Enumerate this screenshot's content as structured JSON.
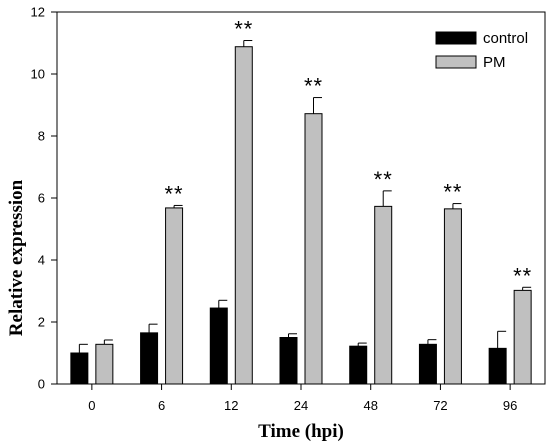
{
  "chart_data": {
    "type": "bar",
    "xlabel": "Time (hpi)",
    "ylabel": "Relative expression",
    "ylim": [
      0,
      12
    ],
    "yticks": [
      0,
      2,
      4,
      6,
      8,
      10,
      12
    ],
    "categories": [
      "0",
      "6",
      "12",
      "24",
      "48",
      "72",
      "96"
    ],
    "series": [
      {
        "name": "control",
        "color": "#000000",
        "values": [
          1.0,
          1.65,
          2.45,
          1.5,
          1.22,
          1.28,
          1.15
        ],
        "errors": [
          0.28,
          0.28,
          0.25,
          0.12,
          0.1,
          0.15,
          0.55
        ]
      },
      {
        "name": "PM",
        "color": "#c0c0c0",
        "values": [
          1.28,
          5.68,
          10.88,
          8.72,
          5.73,
          5.65,
          3.02
        ],
        "errors": [
          0.14,
          0.08,
          0.2,
          0.52,
          0.5,
          0.17,
          0.1
        ]
      }
    ],
    "annotations": [
      "",
      "**",
      "**",
      "**",
      "**",
      "**",
      "**"
    ],
    "legend_position": "top-right",
    "grid": false
  }
}
